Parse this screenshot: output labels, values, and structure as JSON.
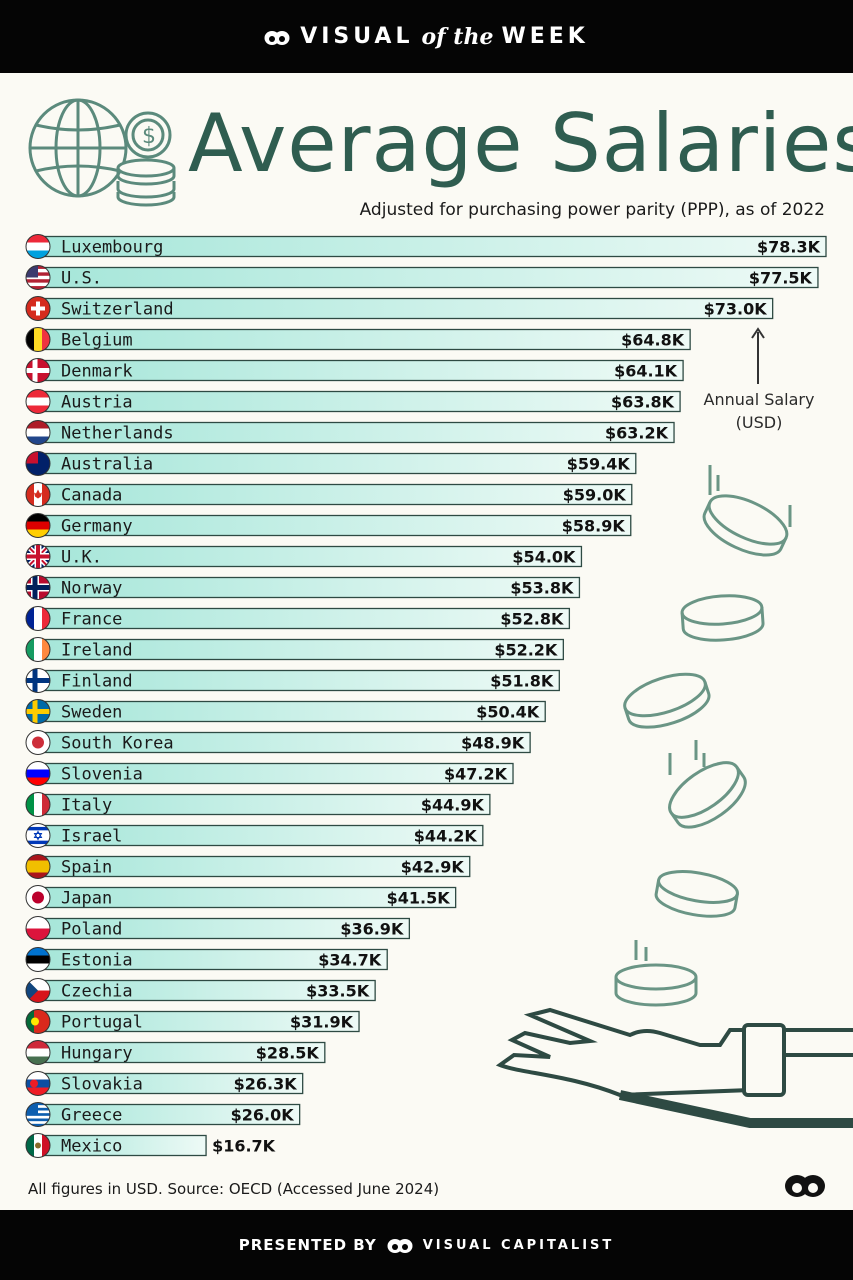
{
  "header": {
    "brand_left": "VISUAL",
    "brand_mid": "of the",
    "brand_right": "WEEK"
  },
  "title": "Average Salaries",
  "subtitle": "Adjusted for purchasing power parity (PPP), as of 2022",
  "annotation": "Annual Salary (USD)",
  "footnote": "All figures in USD. Source: OECD (Accessed June 2024)",
  "footer": {
    "presented_by": "PRESENTED BY",
    "brand": "VISUAL CAPITALIST"
  },
  "colors": {
    "bar_fill_start": "#a5e6d9",
    "bar_fill_end": "#eefaf6",
    "bar_stroke": "#2e4a43",
    "title_color": "#2f5d50",
    "icon_color": "#5b8a7c",
    "background": "#fbfaf4"
  },
  "chart_data": {
    "type": "bar",
    "orientation": "horizontal",
    "unit": "USD thousands",
    "xlim": [
      0,
      78.3
    ],
    "categories": [
      "Luxembourg",
      "U.S.",
      "Switzerland",
      "Belgium",
      "Denmark",
      "Austria",
      "Netherlands",
      "Australia",
      "Canada",
      "Germany",
      "U.K.",
      "Norway",
      "France",
      "Ireland",
      "Finland",
      "Sweden",
      "South Korea",
      "Slovenia",
      "Italy",
      "Israel",
      "Spain",
      "Japan",
      "Poland",
      "Estonia",
      "Czechia",
      "Portugal",
      "Hungary",
      "Slovakia",
      "Greece",
      "Mexico"
    ],
    "values": [
      78.3,
      77.5,
      73.0,
      64.8,
      64.1,
      63.8,
      63.2,
      59.4,
      59.0,
      58.9,
      54.0,
      53.8,
      52.8,
      52.2,
      51.8,
      50.4,
      48.9,
      47.2,
      44.9,
      44.2,
      42.9,
      41.5,
      36.9,
      34.7,
      33.5,
      31.9,
      28.5,
      26.3,
      26.0,
      16.7
    ],
    "labels": [
      "$78.3K",
      "$77.5K",
      "$73.0K",
      "$64.8K",
      "$64.1K",
      "$63.8K",
      "$63.2K",
      "$59.4K",
      "$59.0K",
      "$58.9K",
      "$54.0K",
      "$53.8K",
      "$52.8K",
      "$52.2K",
      "$51.8K",
      "$50.4K",
      "$48.9K",
      "$47.2K",
      "$44.9K",
      "$44.2K",
      "$42.9K",
      "$41.5K",
      "$36.9K",
      "$34.7K",
      "$33.5K",
      "$31.9K",
      "$28.5K",
      "$26.3K",
      "$26.0K",
      "$16.7K"
    ],
    "flag_icons": [
      "flag-luxembourg",
      "flag-us",
      "flag-switzerland",
      "flag-belgium",
      "flag-denmark",
      "flag-austria",
      "flag-netherlands",
      "flag-australia",
      "flag-canada",
      "flag-germany",
      "flag-uk",
      "flag-norway",
      "flag-france",
      "flag-ireland",
      "flag-finland",
      "flag-sweden",
      "flag-south-korea",
      "flag-slovenia",
      "flag-italy",
      "flag-israel",
      "flag-spain",
      "flag-japan",
      "flag-poland",
      "flag-estonia",
      "flag-czechia",
      "flag-portugal",
      "flag-hungary",
      "flag-slovakia",
      "flag-greece",
      "flag-mexico"
    ]
  }
}
